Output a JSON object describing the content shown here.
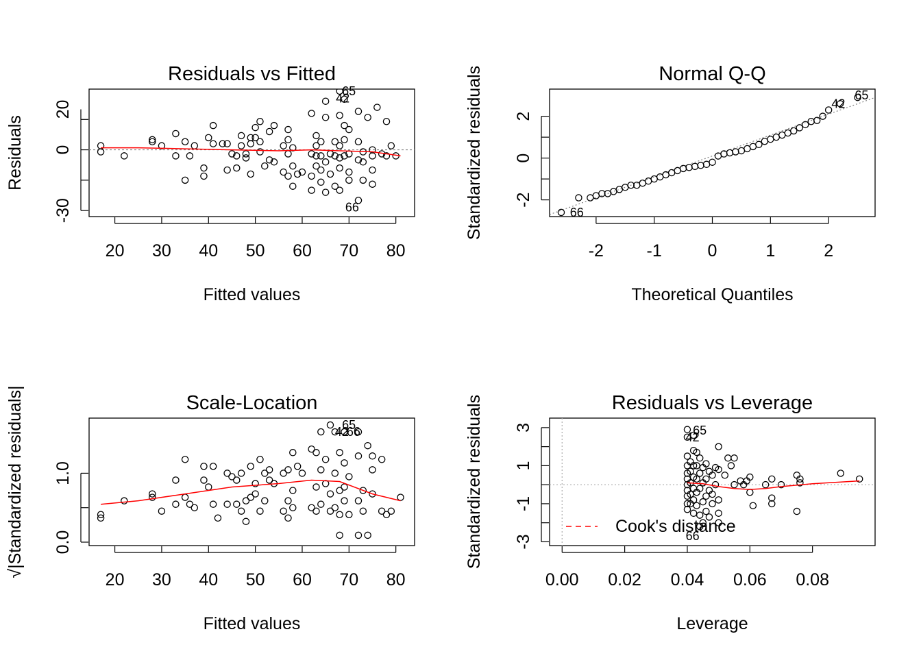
{
  "colors": {
    "points": "#000000",
    "smooth": "#ff0000",
    "ref": "#808080",
    "cook": "#ff0000"
  },
  "chart_data": [
    {
      "type": "scatter",
      "title": "Residuals vs Fitted",
      "xlabel": "Fitted values",
      "ylabel": "Residuals",
      "xlim": [
        14.5,
        84
      ],
      "ylim": [
        -33,
        30
      ],
      "xticks": [
        "20",
        "30",
        "40",
        "50",
        "60",
        "70",
        "80"
      ],
      "yticks": [
        "-30",
        "0",
        "20"
      ],
      "labels": [
        "65",
        "42",
        "66"
      ],
      "points": [
        [
          17,
          2
        ],
        [
          17,
          -1
        ],
        [
          22,
          -3
        ],
        [
          28,
          4
        ],
        [
          28,
          5
        ],
        [
          30,
          2
        ],
        [
          33,
          8
        ],
        [
          33,
          -3
        ],
        [
          35,
          -15
        ],
        [
          35,
          4
        ],
        [
          36,
          -3
        ],
        [
          37,
          2
        ],
        [
          39,
          -9
        ],
        [
          39,
          -13
        ],
        [
          40,
          6
        ],
        [
          41,
          3
        ],
        [
          41,
          12
        ],
        [
          43,
          3
        ],
        [
          44,
          -10
        ],
        [
          44,
          3
        ],
        [
          45,
          -2
        ],
        [
          46,
          -3
        ],
        [
          46,
          -9
        ],
        [
          47,
          2
        ],
        [
          47,
          7
        ],
        [
          48,
          -4
        ],
        [
          48,
          -2
        ],
        [
          49,
          3
        ],
        [
          49,
          -12
        ],
        [
          49,
          6
        ],
        [
          50,
          6
        ],
        [
          50,
          11
        ],
        [
          51,
          -1
        ],
        [
          51,
          4
        ],
        [
          51,
          14
        ],
        [
          52,
          -8
        ],
        [
          53,
          -5
        ],
        [
          53,
          9
        ],
        [
          54,
          -6
        ],
        [
          54,
          12
        ],
        [
          56,
          -11
        ],
        [
          56,
          2
        ],
        [
          57,
          -13
        ],
        [
          57,
          -2
        ],
        [
          57,
          5
        ],
        [
          57,
          10
        ],
        [
          58,
          -18
        ],
        [
          58,
          1
        ],
        [
          58,
          -8
        ],
        [
          59,
          -12
        ],
        [
          60,
          -11
        ],
        [
          62,
          -13
        ],
        [
          62,
          -2
        ],
        [
          62,
          18
        ],
        [
          62,
          -20
        ],
        [
          63,
          -3
        ],
        [
          63,
          2
        ],
        [
          63,
          7
        ],
        [
          63,
          -8
        ],
        [
          64,
          -10
        ],
        [
          64,
          -16
        ],
        [
          64,
          -3
        ],
        [
          64,
          4
        ],
        [
          65,
          -6
        ],
        [
          65,
          -21
        ],
        [
          65,
          24
        ],
        [
          65,
          16
        ],
        [
          66,
          -2
        ],
        [
          66,
          -12
        ],
        [
          67,
          -3
        ],
        [
          67,
          4
        ],
        [
          67,
          -18
        ],
        [
          68,
          29
        ],
        [
          68,
          -4
        ],
        [
          68,
          2
        ],
        [
          68,
          -9
        ],
        [
          68,
          17
        ],
        [
          68,
          -20
        ],
        [
          69,
          25
        ],
        [
          69,
          -3
        ],
        [
          69,
          5
        ],
        [
          69,
          12
        ],
        [
          70,
          -11
        ],
        [
          70,
          -15
        ],
        [
          70,
          10
        ],
        [
          70,
          -2
        ],
        [
          72,
          -5
        ],
        [
          72,
          4
        ],
        [
          72,
          19
        ],
        [
          72,
          -25
        ],
        [
          73,
          -1
        ],
        [
          73,
          -6
        ],
        [
          73,
          -15
        ],
        [
          74,
          16
        ],
        [
          75,
          -3
        ],
        [
          75,
          0
        ],
        [
          75,
          -17
        ],
        [
          75,
          -10
        ],
        [
          76,
          21
        ],
        [
          77,
          -2
        ],
        [
          78,
          14
        ],
        [
          78,
          -3
        ],
        [
          79,
          2
        ],
        [
          80,
          -3
        ]
      ],
      "smooth": [
        [
          17,
          1
        ],
        [
          25,
          1
        ],
        [
          35,
          0.5
        ],
        [
          45,
          0
        ],
        [
          55,
          -0.5
        ],
        [
          62,
          0
        ],
        [
          68,
          -0.5
        ],
        [
          75,
          -1
        ],
        [
          81,
          -3
        ]
      ]
    },
    {
      "type": "scatter",
      "title": "Normal Q-Q",
      "xlabel": "Theoretical Quantiles",
      "ylabel": "Standardized residuals",
      "xlim": [
        -2.8,
        2.8
      ],
      "ylim": [
        -2.8,
        3.3
      ],
      "xticks": [
        "-2",
        "-1",
        "0",
        "1",
        "2"
      ],
      "yticks": [
        "-2",
        "0",
        "2"
      ],
      "labels": [
        "65",
        "42",
        "66"
      ],
      "points": [
        [
          -2.6,
          -2.6
        ],
        [
          -2.3,
          -1.9
        ],
        [
          -2.1,
          -1.9
        ],
        [
          -2,
          -1.8
        ],
        [
          -1.9,
          -1.7
        ],
        [
          -1.8,
          -1.7
        ],
        [
          -1.7,
          -1.6
        ],
        [
          -1.6,
          -1.5
        ],
        [
          -1.5,
          -1.4
        ],
        [
          -1.4,
          -1.3
        ],
        [
          -1.3,
          -1.3
        ],
        [
          -1.2,
          -1.2
        ],
        [
          -1.1,
          -1.1
        ],
        [
          -1,
          -1
        ],
        [
          -0.9,
          -0.9
        ],
        [
          -0.8,
          -0.8
        ],
        [
          -0.7,
          -0.7
        ],
        [
          -0.6,
          -0.6
        ],
        [
          -0.5,
          -0.5
        ],
        [
          -0.4,
          -0.45
        ],
        [
          -0.3,
          -0.4
        ],
        [
          -0.2,
          -0.35
        ],
        [
          -0.1,
          -0.3
        ],
        [
          0,
          -0.2
        ],
        [
          0.1,
          0.1
        ],
        [
          0.2,
          0.2
        ],
        [
          0.3,
          0.25
        ],
        [
          0.4,
          0.3
        ],
        [
          0.5,
          0.35
        ],
        [
          0.6,
          0.45
        ],
        [
          0.7,
          0.55
        ],
        [
          0.8,
          0.65
        ],
        [
          0.9,
          0.8
        ],
        [
          1,
          0.9
        ],
        [
          1.1,
          1
        ],
        [
          1.2,
          1.1
        ],
        [
          1.3,
          1.2
        ],
        [
          1.4,
          1.3
        ],
        [
          1.5,
          1.45
        ],
        [
          1.6,
          1.6
        ],
        [
          1.7,
          1.75
        ],
        [
          1.8,
          1.8
        ],
        [
          1.9,
          2
        ],
        [
          2,
          2.3
        ],
        [
          2.2,
          2.6
        ],
        [
          2.5,
          2.9
        ]
      ],
      "qqline": [
        [
          -2.8,
          -2.7
        ],
        [
          2.8,
          2.9
        ]
      ]
    },
    {
      "type": "scatter",
      "title": "Scale-Location",
      "xlabel": "Fitted values",
      "ylabel": "√|Standardized residuals|",
      "xlim": [
        14.5,
        84
      ],
      "ylim": [
        -0.05,
        1.8
      ],
      "xticks": [
        "20",
        "30",
        "40",
        "50",
        "60",
        "70",
        "80"
      ],
      "yticks": [
        "0.0",
        "1.0"
      ],
      "labels": [
        "65",
        "42",
        "66"
      ],
      "points": [
        [
          17,
          0.4
        ],
        [
          17,
          0.35
        ],
        [
          22,
          0.6
        ],
        [
          28,
          0.7
        ],
        [
          28,
          0.65
        ],
        [
          30,
          0.45
        ],
        [
          33,
          0.9
        ],
        [
          33,
          0.55
        ],
        [
          35,
          1.2
        ],
        [
          35,
          0.65
        ],
        [
          36,
          0.55
        ],
        [
          37,
          0.5
        ],
        [
          39,
          0.9
        ],
        [
          39,
          1.1
        ],
        [
          40,
          0.8
        ],
        [
          41,
          0.55
        ],
        [
          41,
          1.1
        ],
        [
          42,
          0.35
        ],
        [
          44,
          1
        ],
        [
          44,
          0.55
        ],
        [
          45,
          0.95
        ],
        [
          46,
          0.55
        ],
        [
          46,
          0.9
        ],
        [
          47,
          0.45
        ],
        [
          47,
          1
        ],
        [
          48,
          0.6
        ],
        [
          48,
          0.3
        ],
        [
          49,
          0.65
        ],
        [
          49,
          1.1
        ],
        [
          50,
          0.85
        ],
        [
          50,
          0.7
        ],
        [
          51,
          1.2
        ],
        [
          51,
          0.45
        ],
        [
          52,
          1
        ],
        [
          52,
          0.6
        ],
        [
          53,
          1.05
        ],
        [
          53,
          0.9
        ],
        [
          54,
          0.85
        ],
        [
          56,
          1
        ],
        [
          56,
          0.45
        ],
        [
          57,
          1.05
        ],
        [
          57,
          0.6
        ],
        [
          57,
          0.35
        ],
        [
          58,
          1.3
        ],
        [
          58,
          0.75
        ],
        [
          58,
          0.5
        ],
        [
          59,
          1.1
        ],
        [
          60,
          1
        ],
        [
          62,
          1.35
        ],
        [
          62,
          0.5
        ],
        [
          63,
          1.3
        ],
        [
          63,
          0.8
        ],
        [
          63,
          0.45
        ],
        [
          64,
          1.6
        ],
        [
          64,
          1.05
        ],
        [
          64,
          0.55
        ],
        [
          65,
          1.2
        ],
        [
          65,
          0.85
        ],
        [
          66,
          1.7
        ],
        [
          66,
          0.7
        ],
        [
          66,
          0.45
        ],
        [
          67,
          1.6
        ],
        [
          67,
          1
        ],
        [
          67,
          0.5
        ],
        [
          68,
          1.3
        ],
        [
          68,
          0.75
        ],
        [
          68,
          0.4
        ],
        [
          68,
          0.1
        ],
        [
          69,
          1.6
        ],
        [
          69,
          1.15
        ],
        [
          69,
          0.8
        ],
        [
          69,
          0.6
        ],
        [
          70,
          0.95
        ],
        [
          70,
          0.4
        ],
        [
          72,
          1.6
        ],
        [
          72,
          1.25
        ],
        [
          72,
          0.6
        ],
        [
          72,
          0.1
        ],
        [
          73,
          0.75
        ],
        [
          73,
          0.45
        ],
        [
          74,
          1.4
        ],
        [
          74,
          0.1
        ],
        [
          75,
          1.25
        ],
        [
          75,
          0.7
        ],
        [
          75,
          1.05
        ],
        [
          77,
          1.2
        ],
        [
          77,
          0.45
        ],
        [
          78,
          0.4
        ],
        [
          79,
          0.45
        ],
        [
          81,
          0.65
        ]
      ],
      "smooth": [
        [
          17,
          0.55
        ],
        [
          25,
          0.6
        ],
        [
          35,
          0.7
        ],
        [
          45,
          0.8
        ],
        [
          55,
          0.85
        ],
        [
          62,
          0.9
        ],
        [
          68,
          0.88
        ],
        [
          75,
          0.7
        ],
        [
          81,
          0.6
        ]
      ]
    },
    {
      "type": "scatter",
      "title": "Residuals vs Leverage",
      "xlabel": "Leverage",
      "ylabel": "Standardized residuals",
      "xlim": [
        -0.004,
        0.1
      ],
      "ylim": [
        -3.2,
        3.5
      ],
      "xticks": [
        "0.00",
        "0.02",
        "0.04",
        "0.06",
        "0.08"
      ],
      "yticks": [
        "-3",
        "-1",
        "1",
        "3"
      ],
      "labels": [
        "65",
        "42",
        "66"
      ],
      "legend": {
        "label": "Cook's distance",
        "position": "bottom-left"
      },
      "points": [
        [
          0.04,
          2.9
        ],
        [
          0.04,
          2.5
        ],
        [
          0.04,
          1.5
        ],
        [
          0.04,
          1
        ],
        [
          0.04,
          0.6
        ],
        [
          0.04,
          0.3
        ],
        [
          0.04,
          0
        ],
        [
          0.04,
          -0.3
        ],
        [
          0.04,
          -0.6
        ],
        [
          0.04,
          -1
        ],
        [
          0.04,
          -1.3
        ],
        [
          0.041,
          1.2
        ],
        [
          0.041,
          0.7
        ],
        [
          0.041,
          0.1
        ],
        [
          0.041,
          -0.5
        ],
        [
          0.041,
          -1
        ],
        [
          0.042,
          2.6
        ],
        [
          0.042,
          1.8
        ],
        [
          0.042,
          1
        ],
        [
          0.042,
          0.4
        ],
        [
          0.042,
          -0.2
        ],
        [
          0.042,
          -0.8
        ],
        [
          0.042,
          -1.5
        ],
        [
          0.043,
          1.7
        ],
        [
          0.043,
          1
        ],
        [
          0.043,
          0.3
        ],
        [
          0.043,
          -0.4
        ],
        [
          0.043,
          -1.1
        ],
        [
          0.044,
          1.4
        ],
        [
          0.044,
          0.6
        ],
        [
          0.044,
          -0.2
        ],
        [
          0.044,
          -1.6
        ],
        [
          0.044,
          -2.2
        ],
        [
          0.045,
          0.9
        ],
        [
          0.045,
          0.1
        ],
        [
          0.045,
          -0.9
        ],
        [
          0.045,
          -2
        ],
        [
          0.046,
          1.1
        ],
        [
          0.046,
          0.3
        ],
        [
          0.046,
          -0.6
        ],
        [
          0.046,
          -1.4
        ],
        [
          0.047,
          0.7
        ],
        [
          0.047,
          -0.3
        ],
        [
          0.047,
          -1.7
        ],
        [
          0.048,
          0.5
        ],
        [
          0.048,
          -0.5
        ],
        [
          0.048,
          -1
        ],
        [
          0.049,
          0.9
        ],
        [
          0.049,
          0
        ],
        [
          0.05,
          2
        ],
        [
          0.05,
          0.8
        ],
        [
          0.05,
          -0.8
        ],
        [
          0.05,
          -1.5
        ],
        [
          0.05,
          -2
        ],
        [
          0.052,
          0.5
        ],
        [
          0.053,
          1.4
        ],
        [
          0.054,
          1
        ],
        [
          0.055,
          0
        ],
        [
          0.055,
          1.4
        ],
        [
          0.057,
          0.2
        ],
        [
          0.058,
          0
        ],
        [
          0.059,
          0.2
        ],
        [
          0.06,
          0.4
        ],
        [
          0.06,
          -0.4
        ],
        [
          0.061,
          -1.1
        ],
        [
          0.065,
          0
        ],
        [
          0.067,
          0.3
        ],
        [
          0.067,
          -0.7
        ],
        [
          0.067,
          -1
        ],
        [
          0.07,
          0
        ],
        [
          0.075,
          0.5
        ],
        [
          0.075,
          -1.4
        ],
        [
          0.076,
          0.1
        ],
        [
          0.076,
          0.3
        ],
        [
          0.089,
          0.6
        ],
        [
          0.095,
          0.3
        ]
      ],
      "smooth": [
        [
          0.04,
          0.1
        ],
        [
          0.045,
          0.05
        ],
        [
          0.05,
          -0.1
        ],
        [
          0.055,
          -0.2
        ],
        [
          0.06,
          -0.25
        ],
        [
          0.065,
          -0.2
        ],
        [
          0.07,
          -0.1
        ],
        [
          0.08,
          0.05
        ],
        [
          0.09,
          0.15
        ],
        [
          0.095,
          0.2
        ]
      ]
    }
  ]
}
